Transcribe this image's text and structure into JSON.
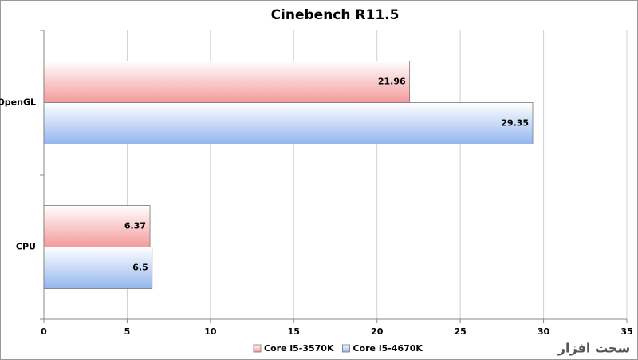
{
  "chart_data": {
    "type": "hbar",
    "title": "Cinebench R11.5",
    "categories": [
      "OpenGL",
      "CPU"
    ],
    "series": [
      {
        "name": "Core i5-3570K",
        "color": "#f39a9a",
        "values": [
          21.96,
          6.37
        ]
      },
      {
        "name": "Core i5-4670K",
        "color": "#94b6ee",
        "values": [
          29.35,
          6.5
        ]
      }
    ],
    "xlim": [
      0,
      35
    ],
    "xticks": [
      0,
      5,
      10,
      15,
      20,
      25,
      30,
      35
    ],
    "grid": true,
    "legend": "bottom",
    "watermark": "سخت افزار"
  }
}
